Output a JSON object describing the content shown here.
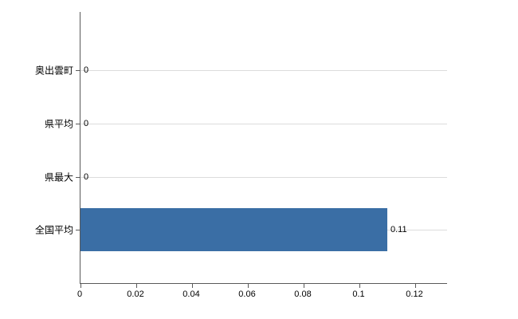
{
  "chart_data": {
    "type": "bar",
    "orientation": "horizontal",
    "title": "",
    "categories": [
      "奥出雲町",
      "県平均",
      "県最大",
      "全国平均"
    ],
    "values": [
      0,
      0,
      0,
      0.11
    ],
    "value_labels": [
      "0",
      "0",
      "0",
      "0.11"
    ],
    "x_ticks": [
      0,
      0.02,
      0.04,
      0.06,
      0.08,
      0.1,
      0.12
    ],
    "x_tick_labels": [
      "0",
      "0.02",
      "0.04",
      "0.06",
      "0.08",
      "0.1",
      "0.12"
    ],
    "xlim": [
      0,
      0.1314
    ],
    "xlabel": "",
    "ylabel": "",
    "legend": "none",
    "grid": "horizontal-light",
    "bar_color": "#3a6ea5",
    "axis_color": "#595959",
    "grid_color": "#dcdcdc",
    "background_color": "#ffffff"
  }
}
